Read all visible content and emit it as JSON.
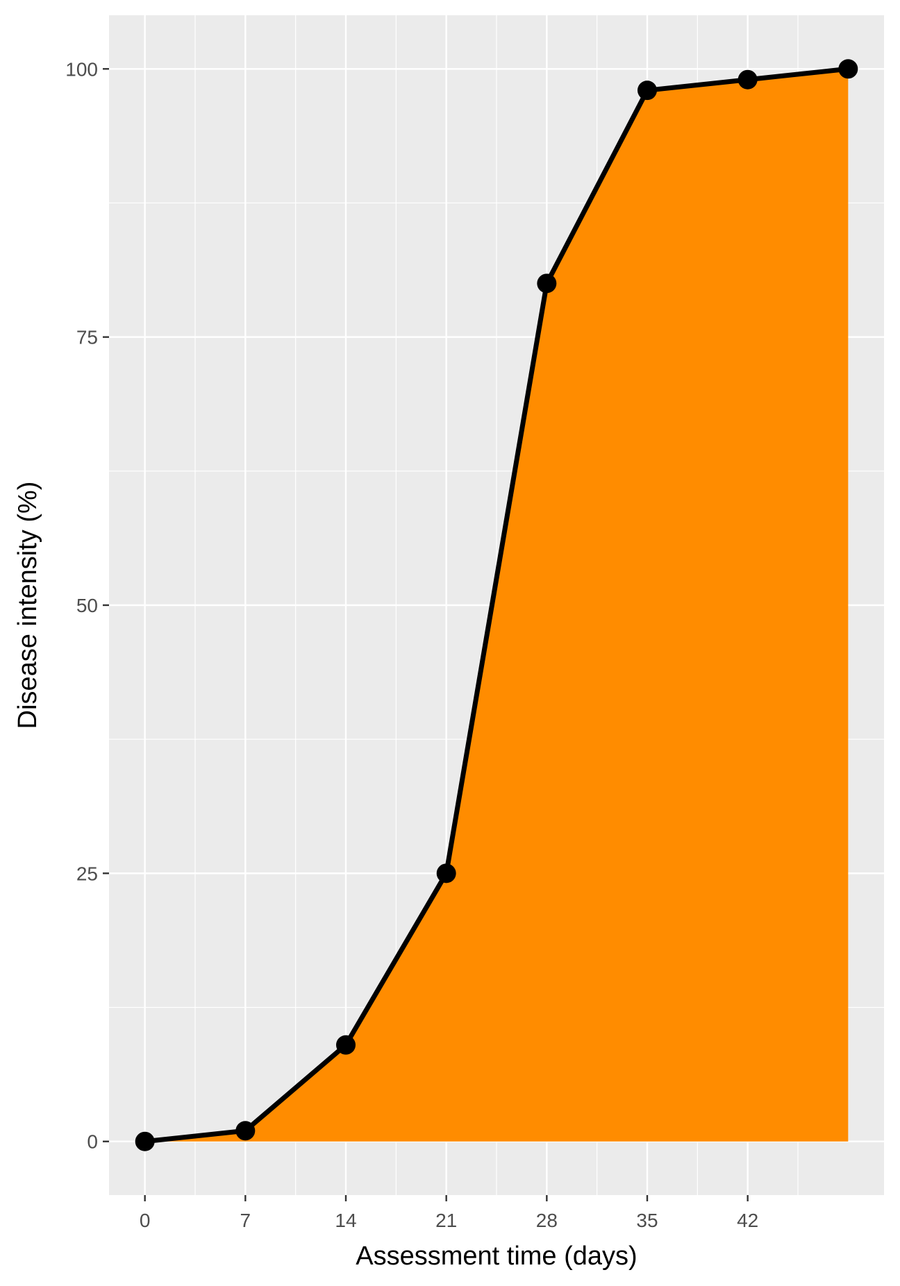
{
  "chart_data": {
    "type": "area",
    "title": "",
    "xlabel": "Assessment time (days)",
    "ylabel": "Disease intensity (%)",
    "x": [
      0,
      7,
      14,
      21,
      28,
      35,
      42,
      49
    ],
    "y": [
      0,
      1,
      9,
      25,
      80,
      98,
      99,
      100
    ],
    "x_ticks": [
      0,
      7,
      14,
      21,
      28,
      35,
      42
    ],
    "y_ticks": [
      0,
      25,
      50,
      75,
      100
    ],
    "xlim": [
      -2.5,
      51.5
    ],
    "ylim": [
      -5,
      105
    ],
    "grid": true,
    "legend": "none",
    "colors": {
      "panel": "#ebebeb",
      "grid": "#ffffff",
      "fill": "#ff8c00",
      "line": "#000000",
      "point": "#000000"
    }
  }
}
